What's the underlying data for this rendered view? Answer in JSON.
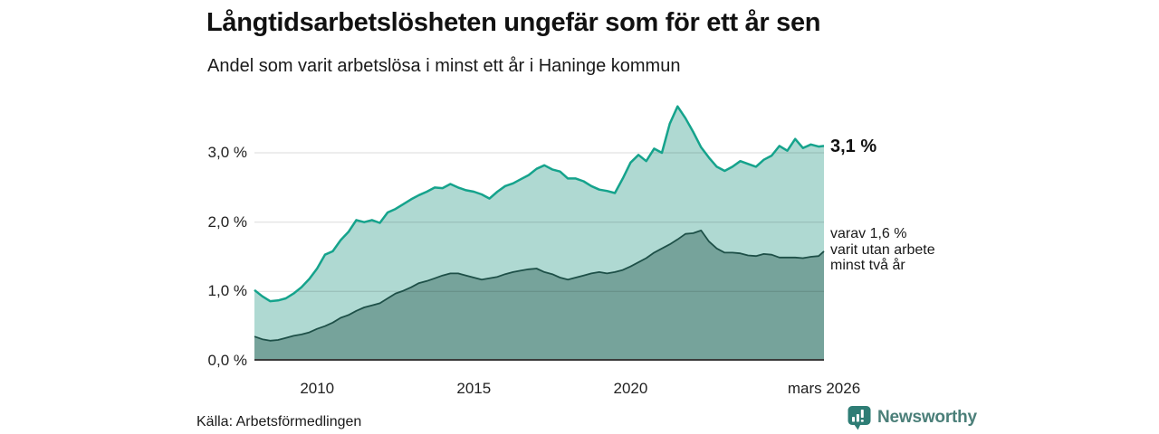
{
  "header": {
    "title": "Långtidsarbetslösheten ungefär som för ett år sen",
    "subtitle": "Andel som varit arbetslösa i minst ett år i Haninge kommun"
  },
  "annotations": {
    "series1_end_label": "3,1 %",
    "series2_end_label_lines": [
      "varav 1,6 %",
      "varit utan arbete",
      "minst två år"
    ]
  },
  "footer": {
    "source": "Källa: Arbetsförmedlingen",
    "brand": "Newsworthy"
  },
  "colors": {
    "series1_line": "#15a38c",
    "series1_fill": "#afd9d2",
    "series2_line": "#1e5048",
    "series2_fill": "#76a39b",
    "gridline": "#000000",
    "gridline_opacity": 0.14,
    "baseline": "#3a3a3a",
    "brand": "#4b7f79",
    "brand_icon_bg": "#2e7d75"
  },
  "chart_data": {
    "type": "area",
    "title": "Långtidsarbetslösheten ungefär som för ett år sen",
    "subtitle": "Andel som varit arbetslösa i minst ett år i Haninge kommun",
    "unit": "%",
    "xlim": [
      2008,
      2026.17
    ],
    "ylim": [
      0,
      3.77
    ],
    "grid": true,
    "legend_position": "end-labels",
    "x": [
      2008,
      2008.25,
      2008.5,
      2008.75,
      2009,
      2009.25,
      2009.5,
      2009.75,
      2010,
      2010.25,
      2010.5,
      2010.75,
      2011,
      2011.25,
      2011.5,
      2011.75,
      2012,
      2012.25,
      2012.5,
      2012.75,
      2013,
      2013.25,
      2013.5,
      2013.75,
      2014,
      2014.25,
      2014.5,
      2014.75,
      2015,
      2015.25,
      2015.5,
      2015.75,
      2016,
      2016.25,
      2016.5,
      2016.75,
      2017,
      2017.25,
      2017.5,
      2017.75,
      2018,
      2018.25,
      2018.5,
      2018.75,
      2019,
      2019.25,
      2019.5,
      2019.75,
      2020,
      2020.25,
      2020.5,
      2020.75,
      2021,
      2021.25,
      2021.5,
      2021.75,
      2022,
      2022.25,
      2022.5,
      2022.75,
      2023,
      2023.25,
      2023.5,
      2023.75,
      2024,
      2024.25,
      2024.5,
      2024.75,
      2025,
      2025.25,
      2025.5,
      2025.75,
      2026,
      2026.17
    ],
    "series": [
      {
        "name": "Andel som varit arbetslösa i minst ett år",
        "end_label": "3,1 %",
        "values": [
          1.02,
          0.93,
          0.86,
          0.87,
          0.9,
          0.97,
          1.06,
          1.18,
          1.33,
          1.53,
          1.58,
          1.74,
          1.86,
          2.03,
          2.0,
          2.03,
          1.99,
          2.14,
          2.19,
          2.26,
          2.33,
          2.39,
          2.44,
          2.5,
          2.49,
          2.55,
          2.5,
          2.46,
          2.44,
          2.4,
          2.34,
          2.44,
          2.52,
          2.56,
          2.62,
          2.68,
          2.77,
          2.82,
          2.76,
          2.73,
          2.63,
          2.63,
          2.59,
          2.52,
          2.47,
          2.45,
          2.42,
          2.63,
          2.86,
          2.97,
          2.88,
          3.06,
          3.0,
          3.42,
          3.67,
          3.5,
          3.3,
          3.08,
          2.93,
          2.8,
          2.74,
          2.8,
          2.88,
          2.84,
          2.8,
          2.9,
          2.96,
          3.1,
          3.03,
          3.2,
          3.07,
          3.12,
          3.09,
          3.1
        ]
      },
      {
        "name": "varav varit utan arbete minst två år",
        "end_label": "varav 1,6 % varit utan arbete minst två år",
        "values": [
          0.35,
          0.31,
          0.29,
          0.3,
          0.33,
          0.36,
          0.38,
          0.41,
          0.46,
          0.5,
          0.55,
          0.62,
          0.66,
          0.72,
          0.77,
          0.8,
          0.83,
          0.9,
          0.97,
          1.01,
          1.06,
          1.12,
          1.15,
          1.19,
          1.23,
          1.26,
          1.26,
          1.23,
          1.2,
          1.17,
          1.19,
          1.21,
          1.25,
          1.28,
          1.3,
          1.32,
          1.33,
          1.28,
          1.25,
          1.2,
          1.17,
          1.2,
          1.23,
          1.26,
          1.28,
          1.26,
          1.28,
          1.31,
          1.36,
          1.42,
          1.48,
          1.56,
          1.62,
          1.68,
          1.75,
          1.83,
          1.84,
          1.88,
          1.72,
          1.62,
          1.56,
          1.56,
          1.55,
          1.52,
          1.51,
          1.54,
          1.53,
          1.49,
          1.49,
          1.49,
          1.48,
          1.5,
          1.51,
          1.58
        ]
      }
    ],
    "x_ticks": [
      {
        "x": 2010,
        "label": "2010"
      },
      {
        "x": 2015,
        "label": "2015"
      },
      {
        "x": 2020,
        "label": "2020"
      },
      {
        "x": 2026.17,
        "label": "mars 2026"
      }
    ],
    "y_ticks": [
      {
        "v": 0,
        "label": "0,0 %"
      },
      {
        "v": 1,
        "label": "1,0 %"
      },
      {
        "v": 2,
        "label": "2,0 %"
      },
      {
        "v": 3,
        "label": "3,0 %"
      }
    ]
  }
}
